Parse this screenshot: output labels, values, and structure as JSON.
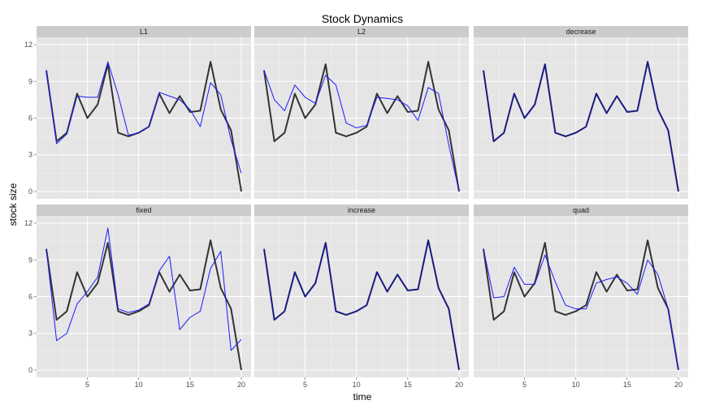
{
  "chart_data": {
    "type": "line",
    "title": "Stock Dynamics",
    "xlabel": "time",
    "ylabel": "stock size",
    "xlim": [
      0.05,
      20.95
    ],
    "ylim": [
      -0.6,
      12.6
    ],
    "x_ticks": [
      5,
      10,
      15,
      20
    ],
    "y_ticks": [
      0,
      3,
      6,
      9,
      12
    ],
    "grid": true,
    "x": [
      1,
      2,
      3,
      4,
      5,
      6,
      7,
      8,
      9,
      10,
      11,
      12,
      13,
      14,
      15,
      16,
      17,
      18,
      19,
      20
    ],
    "colors": {
      "actual": "#333333",
      "fitted": "#1a1aff",
      "overlap": "#1a1a80"
    },
    "panels": [
      {
        "label": "L1",
        "actual": [
          9.9,
          4.1,
          4.8,
          8.0,
          6.0,
          7.1,
          10.4,
          4.8,
          4.5,
          4.8,
          5.3,
          8.0,
          6.4,
          7.8,
          6.5,
          6.6,
          10.6,
          6.7,
          5.0,
          0.0
        ],
        "fitted": [
          9.9,
          3.9,
          4.7,
          7.8,
          7.7,
          7.7,
          10.6,
          7.9,
          4.6,
          4.8,
          5.3,
          8.1,
          7.8,
          7.5,
          6.7,
          5.3,
          8.9,
          7.9,
          4.2,
          1.5
        ]
      },
      {
        "label": "L2",
        "actual": [
          9.9,
          4.1,
          4.8,
          8.0,
          6.0,
          7.1,
          10.4,
          4.8,
          4.5,
          4.8,
          5.3,
          8.0,
          6.4,
          7.8,
          6.5,
          6.6,
          10.6,
          6.7,
          5.0,
          0.0
        ],
        "fitted": [
          9.9,
          7.5,
          6.6,
          8.7,
          7.7,
          7.2,
          9.5,
          8.7,
          5.6,
          5.2,
          5.4,
          7.7,
          7.6,
          7.5,
          7.0,
          5.8,
          8.5,
          8.0,
          3.8,
          0.0
        ]
      },
      {
        "label": "decrease",
        "actual": [
          9.9,
          4.1,
          4.8,
          8.0,
          6.0,
          7.1,
          10.4,
          4.8,
          4.5,
          4.8,
          5.3,
          8.0,
          6.4,
          7.8,
          6.5,
          6.6,
          10.6,
          6.7,
          5.0,
          0.0
        ],
        "fitted": [
          9.9,
          4.1,
          4.8,
          8.0,
          6.0,
          7.1,
          10.4,
          4.8,
          4.5,
          4.8,
          5.3,
          8.0,
          6.4,
          7.8,
          6.5,
          6.6,
          10.6,
          6.7,
          5.0,
          0.0
        ]
      },
      {
        "label": "fixed",
        "actual": [
          9.9,
          4.1,
          4.8,
          8.0,
          6.0,
          7.1,
          10.4,
          4.8,
          4.5,
          4.8,
          5.3,
          8.0,
          6.4,
          7.8,
          6.5,
          6.6,
          10.6,
          6.7,
          5.0,
          0.0
        ],
        "fitted": [
          9.9,
          2.4,
          3.0,
          5.4,
          6.4,
          7.6,
          11.6,
          5.0,
          4.7,
          4.9,
          5.4,
          8.1,
          9.3,
          3.3,
          4.3,
          4.8,
          8.3,
          9.7,
          1.6,
          2.5
        ]
      },
      {
        "label": "increase",
        "actual": [
          9.9,
          4.1,
          4.8,
          8.0,
          6.0,
          7.1,
          10.4,
          4.8,
          4.5,
          4.8,
          5.3,
          8.0,
          6.4,
          7.8,
          6.5,
          6.6,
          10.6,
          6.7,
          5.0,
          0.0
        ],
        "fitted": [
          9.9,
          4.1,
          4.8,
          8.0,
          6.0,
          7.1,
          10.4,
          4.8,
          4.5,
          4.8,
          5.3,
          8.0,
          6.4,
          7.8,
          6.5,
          6.6,
          10.6,
          6.7,
          5.0,
          0.0
        ]
      },
      {
        "label": "quad",
        "actual": [
          9.9,
          4.1,
          4.8,
          8.0,
          6.0,
          7.1,
          10.4,
          4.8,
          4.5,
          4.8,
          5.3,
          8.0,
          6.4,
          7.8,
          6.5,
          6.6,
          10.6,
          6.7,
          5.0,
          0.0
        ],
        "fitted": [
          9.9,
          5.9,
          6.0,
          8.4,
          7.0,
          7.0,
          9.4,
          7.2,
          5.3,
          5.0,
          5.0,
          7.1,
          7.4,
          7.6,
          7.1,
          6.2,
          9.0,
          7.8,
          5.0,
          0.0
        ]
      }
    ]
  }
}
